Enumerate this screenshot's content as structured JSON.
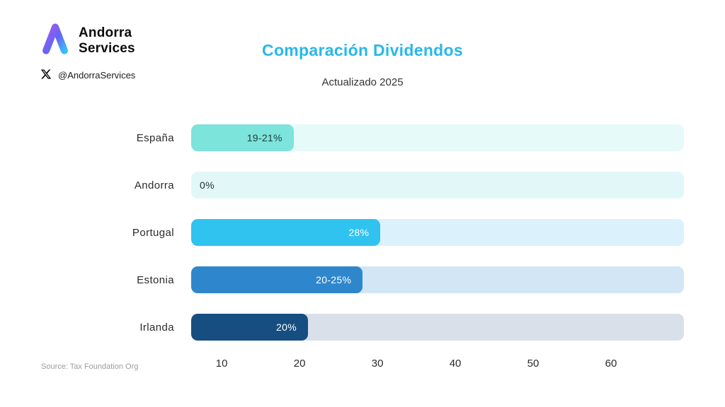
{
  "brand": {
    "name_line1": "Andorra",
    "name_line2": "Services",
    "handle": "@AndorraServices"
  },
  "header": {
    "title": "Comparación Dividendos",
    "subtitle": "Actualizado 2025"
  },
  "footer": {
    "source": "Source: Tax Foundation Org"
  },
  "colors": {
    "title_accent": "#29b7ea",
    "logo_purple": "#a855f7",
    "logo_blue": "#38bdf8"
  },
  "chart_data": {
    "type": "bar",
    "orientation": "horizontal",
    "title": "Comparación Dividendos",
    "subtitle": "Actualizado 2025",
    "source": "Source: Tax Foundation Org",
    "categories": [
      "España",
      "Andorra",
      "Portugal",
      "Estonia",
      "Irlanda"
    ],
    "value_labels": [
      "19-21%",
      "0%",
      "28%",
      "20-25%",
      "20%"
    ],
    "values_min": [
      19,
      0,
      28,
      20,
      20
    ],
    "values_max": [
      21,
      0,
      28,
      25,
      20
    ],
    "unit": "%",
    "x_ticks": [
      "10",
      "20",
      "30",
      "40",
      "50",
      "60"
    ],
    "axis_range": [
      0,
      60
    ],
    "grid": false,
    "legend": false,
    "layout": {
      "bar_width_pct": [
        20.8,
        0,
        38.4,
        34.8,
        23.7
      ],
      "x_tick_pos_pct": [
        6.2,
        22.0,
        37.8,
        53.6,
        69.4,
        85.2
      ],
      "bar_colors": [
        "#7ce4da",
        "#e2f8f8",
        "#30c3f0",
        "#2e87cd",
        "#174e82"
      ],
      "track_colors": [
        "#e6faf9",
        "#e2f8f8",
        "#dbf2fc",
        "#d2e6f5",
        "#d9e0ea"
      ],
      "label_colors": [
        "#1f3a3a",
        "#1f2d33",
        "#ffffff",
        "#ffffff",
        "#ffffff"
      ]
    }
  }
}
